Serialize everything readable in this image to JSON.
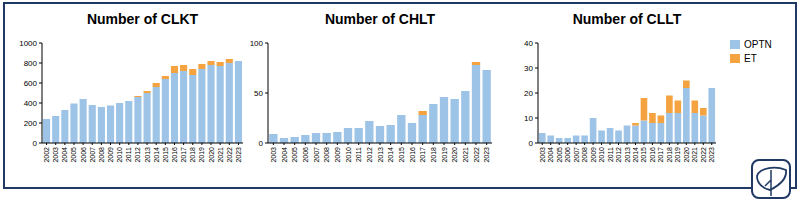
{
  "chart_data": [
    {
      "type": "bar",
      "title": "Number of CLKT",
      "stacked": true,
      "categories": [
        "2002",
        "2003",
        "2004",
        "2005",
        "2006",
        "2007",
        "2008",
        "2009",
        "2010",
        "2011",
        "2012",
        "2013",
        "2014",
        "2015",
        "2016",
        "2017",
        "2018",
        "2019",
        "2020",
        "2021",
        "2022",
        "2023"
      ],
      "series": [
        {
          "name": "OPTN",
          "color": "#9dc3e6",
          "values": [
            240,
            270,
            330,
            395,
            440,
            380,
            360,
            375,
            400,
            420,
            460,
            500,
            560,
            640,
            700,
            720,
            680,
            740,
            780,
            770,
            800,
            820
          ]
        },
        {
          "name": "ET",
          "color": "#f4a340",
          "values": [
            0,
            0,
            0,
            0,
            0,
            0,
            0,
            0,
            0,
            0,
            10,
            20,
            40,
            30,
            70,
            60,
            60,
            50,
            40,
            40,
            40,
            0
          ]
        }
      ],
      "ylim": [
        0,
        1000
      ],
      "yticks": [
        0,
        200,
        400,
        600,
        800,
        1000
      ]
    },
    {
      "type": "bar",
      "title": "Number of CHLT",
      "stacked": true,
      "categories": [
        "2003",
        "2004",
        "2005",
        "2006",
        "2007",
        "2008",
        "2009",
        "2010",
        "2011",
        "2012",
        "2013",
        "2014",
        "2015",
        "2016",
        "2017",
        "2018",
        "2019",
        "2020",
        "2021",
        "2022",
        "2023"
      ],
      "series": [
        {
          "name": "OPTN",
          "color": "#9dc3e6",
          "values": [
            9,
            5,
            6,
            8,
            10,
            10,
            11,
            15,
            15,
            22,
            17,
            18,
            28,
            20,
            28,
            39,
            46,
            44,
            52,
            78,
            73
          ]
        },
        {
          "name": "ET",
          "color": "#f4a340",
          "values": [
            0,
            0,
            0,
            0,
            0,
            0,
            0,
            0,
            0,
            0,
            0,
            0,
            0,
            0,
            4,
            0,
            0,
            0,
            0,
            3,
            0
          ]
        }
      ],
      "ylim": [
        0,
        100
      ],
      "yticks": [
        0,
        50,
        100
      ]
    },
    {
      "type": "bar",
      "title": "Number of CLLT",
      "stacked": true,
      "legend": "right",
      "categories": [
        "2003",
        "2004",
        "2005",
        "2006",
        "2007",
        "2008",
        "2009",
        "2010",
        "2011",
        "2012",
        "2013",
        "2014",
        "2015",
        "2016",
        "2017",
        "2018",
        "2019",
        "2020",
        "2021",
        "2022",
        "2023"
      ],
      "series": [
        {
          "name": "OPTN",
          "color": "#9dc3e6",
          "values": [
            4,
            3,
            2,
            2,
            3,
            3,
            10,
            5,
            6,
            5,
            7,
            7,
            9,
            8,
            8,
            12,
            12,
            22,
            12,
            11,
            22
          ]
        },
        {
          "name": "ET",
          "color": "#f4a340",
          "values": [
            0,
            0,
            0,
            0,
            0,
            0,
            0,
            0,
            0,
            0,
            0,
            1,
            9,
            4,
            3,
            7,
            5,
            3,
            5,
            3,
            0
          ]
        }
      ],
      "ylim": [
        0,
        40
      ],
      "yticks": [
        0,
        10,
        20,
        30,
        40
      ]
    }
  ]
}
